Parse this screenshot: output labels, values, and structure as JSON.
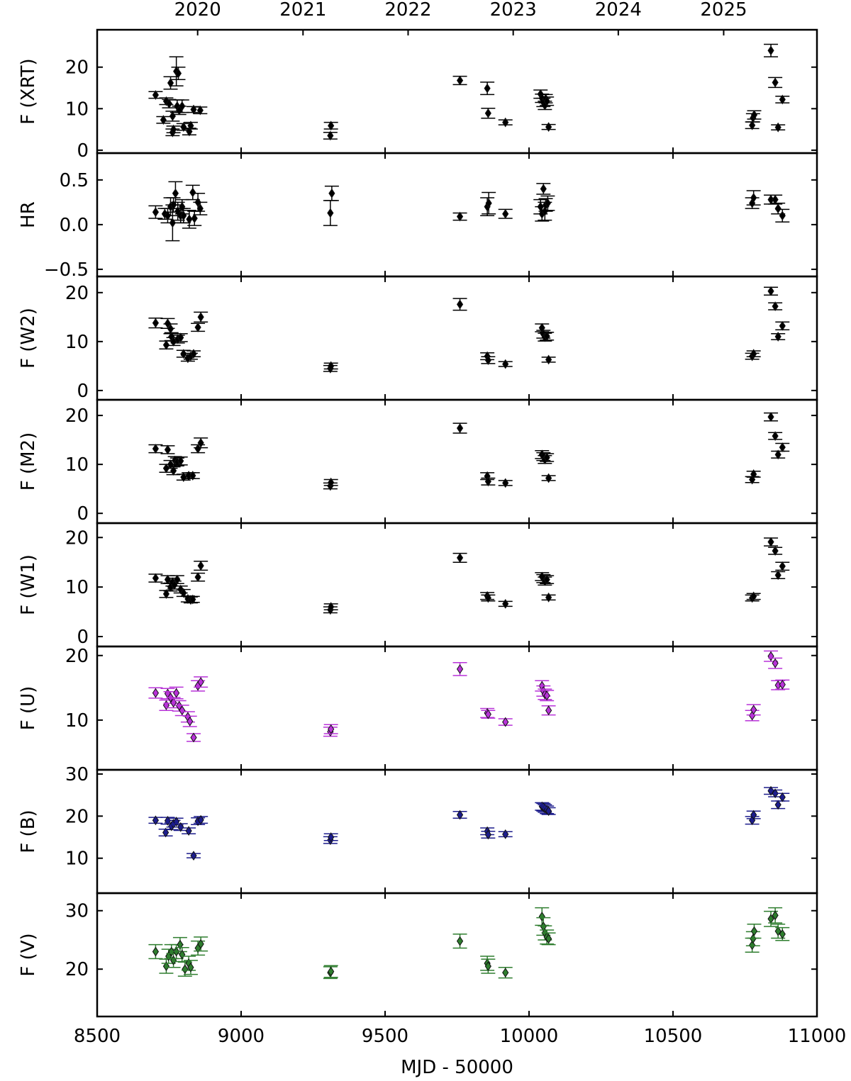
{
  "chart_data": [
    {
      "type": "scatter",
      "ylabel": "F (XRT)",
      "color": "#000000",
      "xlim": [
        8500,
        11000
      ],
      "ylim": [
        -0.7,
        29
      ],
      "yticks": [
        0,
        10,
        20
      ],
      "x2ticks": [
        {
          "value": 8849,
          "label": "2020"
        },
        {
          "value": 9215,
          "label": "2021"
        },
        {
          "value": 9580,
          "label": "2022"
        },
        {
          "value": 9945,
          "label": "2023"
        },
        {
          "value": 10310,
          "label": "2024"
        },
        {
          "value": 10676,
          "label": "2025"
        }
      ],
      "x": [
        8703,
        8730,
        8740,
        8755,
        8750,
        8762,
        8762,
        8765,
        8775,
        8782,
        8778,
        8785,
        8795,
        8800,
        8820,
        8825,
        8835,
        8858,
        9310,
        9312,
        9760,
        9855,
        9858,
        9918,
        10040,
        10045,
        10050,
        10055,
        10058,
        10062,
        10068,
        10775,
        10778,
        10782,
        10840,
        10855,
        10865,
        10880
      ],
      "values": [
        13.3,
        7.3,
        11.8,
        16.2,
        11.2,
        4.3,
        8.2,
        5,
        19,
        18.5,
        10.6,
        9.6,
        10.6,
        5.6,
        4.5,
        5.9,
        9.8,
        9.6,
        3.5,
        5.9,
        16.8,
        14.9,
        8.9,
        6.7,
        13.5,
        12.5,
        11.5,
        10.8,
        12.4,
        11.8,
        5.6,
        6,
        7.8,
        8.5,
        24,
        16.3,
        5.5,
        12.2
      ],
      "errors": [
        0.8,
        0.8,
        0.8,
        1.5,
        1,
        0.8,
        1.2,
        0.8,
        3.5,
        1.5,
        1.5,
        1,
        1.5,
        0.8,
        0.8,
        0.8,
        0.7,
        0.8,
        0.8,
        0.8,
        1,
        1.5,
        1.2,
        0.6,
        1,
        1,
        1,
        1,
        1,
        1,
        0.6,
        0.8,
        1,
        1,
        1.5,
        1.2,
        0.6,
        0.8
      ]
    },
    {
      "type": "scatter",
      "ylabel": "HR",
      "color": "#000000",
      "xlim": [
        8500,
        11000
      ],
      "ylim": [
        -0.58,
        0.8
      ],
      "yticks": [
        {
          "value": -0.5,
          "label": "−0.5"
        },
        {
          "value": 0,
          "label": "0.0"
        },
        {
          "value": 0.5,
          "label": "0.5"
        }
      ],
      "x": [
        8703,
        8735,
        8745,
        8755,
        8762,
        8765,
        8772,
        8780,
        8790,
        8795,
        8800,
        8820,
        8832,
        8838,
        8850,
        8858,
        9310,
        9315,
        9760,
        9855,
        9860,
        9918,
        10040,
        10045,
        10050,
        10055,
        10058,
        10065,
        10775,
        10780,
        10840,
        10855,
        10865,
        10880
      ],
      "values": [
        0.14,
        0.12,
        0.1,
        0.2,
        0.02,
        0.22,
        0.35,
        0.15,
        0.1,
        0.2,
        0.1,
        0.06,
        0.36,
        0.07,
        0.25,
        0.18,
        0.13,
        0.35,
        0.09,
        0.2,
        0.24,
        0.12,
        0.2,
        0.12,
        0.4,
        0.15,
        0.22,
        0.24,
        0.24,
        0.3,
        0.28,
        0.28,
        0.18,
        0.1
      ],
      "errors": [
        0.07,
        0.06,
        0.08,
        0.1,
        0.2,
        0.08,
        0.13,
        0.1,
        0.08,
        0.08,
        0.08,
        0.1,
        0.08,
        0.08,
        0.1,
        0.07,
        0.14,
        0.08,
        0.04,
        0.1,
        0.12,
        0.05,
        0.08,
        0.08,
        0.06,
        0.1,
        0.07,
        0.08,
        0.06,
        0.08,
        0.05,
        0.05,
        0.06,
        0.07
      ]
    },
    {
      "type": "scatter",
      "ylabel": "F (W2)",
      "color": "#000000",
      "xlim": [
        8500,
        11000
      ],
      "ylim": [
        -1.9,
        23.3
      ],
      "yticks": [
        0,
        10,
        20
      ],
      "x": [
        8703,
        8740,
        8745,
        8755,
        8758,
        8765,
        8780,
        8790,
        8800,
        8815,
        8825,
        8835,
        8850,
        8860,
        9310,
        9312,
        9760,
        9855,
        9858,
        9918,
        10045,
        10050,
        10055,
        10062,
        10068,
        10775,
        10780,
        10840,
        10855,
        10865,
        10880
      ],
      "values": [
        13.8,
        9.3,
        13.7,
        12.6,
        11,
        10,
        10.5,
        10.8,
        7.5,
        6.6,
        7,
        7.5,
        12.9,
        15,
        4.5,
        5,
        17.6,
        7,
        6.2,
        5.4,
        12.8,
        11.5,
        10.9,
        11.1,
        6.3,
        7,
        7.5,
        20.3,
        17.2,
        11,
        13.2
      ],
      "errors": [
        1,
        0.8,
        1,
        1,
        0.8,
        0.8,
        0.8,
        0.8,
        0.7,
        0.6,
        0.6,
        0.6,
        0.8,
        1,
        0.6,
        0.6,
        1.2,
        0.7,
        0.7,
        0.5,
        0.8,
        0.8,
        0.8,
        0.8,
        0.5,
        0.6,
        0.6,
        0.8,
        0.7,
        0.6,
        0.8
      ]
    },
    {
      "type": "scatter",
      "ylabel": "F (M2)",
      "color": "#000000",
      "xlim": [
        8500,
        11000
      ],
      "ylim": [
        -2,
        23.2
      ],
      "yticks": [
        0,
        10,
        20
      ],
      "x": [
        8703,
        8740,
        8745,
        8755,
        8765,
        8770,
        8778,
        8790,
        8800,
        8818,
        8832,
        8850,
        8860,
        9310,
        9312,
        9760,
        9855,
        9858,
        9918,
        10045,
        10050,
        10055,
        10062,
        10068,
        10775,
        10780,
        10840,
        10855,
        10865,
        10880
      ],
      "values": [
        13.2,
        9.2,
        13,
        10,
        8.7,
        10.8,
        10.5,
        10.7,
        7.4,
        7.7,
        7.7,
        13.2,
        14.4,
        5.6,
        6.3,
        17.4,
        7.6,
        6.5,
        6.2,
        12,
        11.6,
        11,
        11.4,
        7.2,
        6.9,
        8,
        19.7,
        15.8,
        12,
        13.5
      ],
      "errors": [
        0.8,
        0.8,
        0.8,
        0.8,
        0.8,
        0.8,
        0.8,
        0.8,
        0.6,
        0.6,
        0.6,
        0.8,
        1,
        0.6,
        0.6,
        1,
        0.7,
        0.7,
        0.5,
        0.8,
        0.8,
        0.8,
        0.8,
        0.5,
        0.6,
        0.6,
        0.8,
        0.7,
        0.7,
        0.8
      ]
    },
    {
      "type": "scatter",
      "ylabel": "F (W1)",
      "color": "#000000",
      "xlim": [
        8500,
        11000
      ],
      "ylim": [
        -2,
        22.9
      ],
      "yticks": [
        0,
        10,
        20
      ],
      "x": [
        8703,
        8740,
        8745,
        8755,
        8762,
        8768,
        8778,
        8790,
        8800,
        8815,
        8825,
        8832,
        8850,
        8860,
        9310,
        9312,
        9760,
        9855,
        9858,
        9918,
        10045,
        10050,
        10055,
        10062,
        10068,
        10775,
        10780,
        10840,
        10855,
        10865,
        10880
      ],
      "values": [
        11.8,
        8.6,
        11.5,
        10,
        11,
        10.4,
        11.5,
        9.5,
        8.8,
        7.6,
        7.4,
        7.5,
        12,
        14.3,
        5.4,
        6,
        15.9,
        8.2,
        7.8,
        6.6,
        12.1,
        11.7,
        11.2,
        11.5,
        7.9,
        7.8,
        8.1,
        19.1,
        17.3,
        12.4,
        14.2
      ],
      "errors": [
        0.8,
        0.7,
        0.8,
        0.8,
        0.8,
        0.8,
        0.8,
        0.7,
        0.7,
        0.6,
        0.6,
        0.6,
        0.8,
        0.9,
        0.6,
        0.6,
        0.9,
        0.7,
        0.6,
        0.5,
        0.8,
        0.8,
        0.8,
        0.8,
        0.5,
        0.6,
        0.6,
        0.8,
        0.7,
        0.7,
        0.8
      ]
    },
    {
      "type": "scatter",
      "ylabel": "F (U)",
      "color": "#b832d8",
      "xlim": [
        8500,
        11000
      ],
      "ylim": [
        2.3,
        21.4
      ],
      "yticks": [
        10,
        20
      ],
      "x": [
        8703,
        8740,
        8745,
        8755,
        8765,
        8775,
        8785,
        8795,
        8815,
        8822,
        8835,
        8850,
        8860,
        9310,
        9312,
        9760,
        9855,
        9858,
        9918,
        10045,
        10050,
        10055,
        10062,
        10068,
        10775,
        10780,
        10840,
        10855,
        10865,
        10880
      ],
      "values": [
        14.2,
        12.3,
        14.1,
        13.5,
        12.7,
        14.2,
        12.2,
        11.5,
        10.5,
        9.8,
        7.3,
        15.3,
        15.9,
        8.2,
        8.6,
        17.9,
        11.1,
        10.9,
        9.7,
        15.3,
        14.5,
        14,
        13.8,
        11.5,
        10.7,
        11.6,
        19.9,
        18.8,
        15.4,
        15.5
      ],
      "errors": [
        0.8,
        0.8,
        0.8,
        0.9,
        0.8,
        0.9,
        0.8,
        0.8,
        0.8,
        0.8,
        0.6,
        0.8,
        0.8,
        0.7,
        0.7,
        1,
        0.7,
        0.6,
        0.5,
        0.8,
        0.8,
        0.8,
        0.8,
        0.7,
        0.8,
        0.8,
        0.8,
        0.8,
        0.7,
        0.7
      ]
    },
    {
      "type": "scatter",
      "ylabel": "F (B)",
      "color": "#1c1c8c",
      "xlim": [
        8500,
        11000
      ],
      "ylim": [
        1.7,
        31
      ],
      "yticks": [
        10,
        20,
        30
      ],
      "x": [
        8703,
        8738,
        8745,
        8758,
        8765,
        8775,
        8790,
        8818,
        8835,
        8850,
        8860,
        9310,
        9312,
        9760,
        9855,
        9858,
        9918,
        10045,
        10050,
        10055,
        10062,
        10068,
        10775,
        10780,
        10840,
        10855,
        10865,
        10880
      ],
      "values": [
        19,
        16.1,
        18.9,
        17.6,
        18.2,
        18.7,
        17.4,
        16.5,
        10.6,
        18.8,
        19.1,
        14.3,
        15,
        20.3,
        16.4,
        15.6,
        15.7,
        22.3,
        22.1,
        21.8,
        21.5,
        21.2,
        19,
        20.3,
        26,
        25.4,
        22.7,
        24.5
      ],
      "errors": [
        0.7,
        0.8,
        0.8,
        0.8,
        0.8,
        0.8,
        0.8,
        0.7,
        0.5,
        0.8,
        0.8,
        0.8,
        0.8,
        0.8,
        0.8,
        0.8,
        0.6,
        0.9,
        0.9,
        0.9,
        0.9,
        0.8,
        0.9,
        0.9,
        0.8,
        0.8,
        0.9,
        0.9
      ]
    },
    {
      "type": "scatter",
      "ylabel": "F (V)",
      "color": "#2e7d2e",
      "xlim": [
        8500,
        11000
      ],
      "ylim": [
        11.9,
        33
      ],
      "yticks": [
        20,
        30
      ],
      "xticks": [
        8500,
        9000,
        9500,
        10000,
        10500,
        11000
      ],
      "xlabel": "MJD - 50000",
      "x": [
        8703,
        8740,
        8748,
        8758,
        8765,
        8775,
        8788,
        8795,
        8805,
        8818,
        8825,
        8850,
        8860,
        9310,
        9312,
        9760,
        9855,
        9858,
        9918,
        10045,
        10050,
        10055,
        10062,
        10068,
        10775,
        10778,
        10782,
        10840,
        10855,
        10865,
        10880
      ],
      "values": [
        23,
        20.5,
        22.2,
        23,
        21.5,
        23,
        24.2,
        22.5,
        20,
        21,
        20.3,
        23.6,
        24.3,
        19.4,
        19.6,
        24.8,
        21,
        20.5,
        19.4,
        29,
        27.3,
        26.2,
        25.5,
        25.2,
        24.1,
        25.2,
        26.5,
        28.6,
        29.2,
        26.5,
        26
      ],
      "errors": [
        1.2,
        1.2,
        1.2,
        1.2,
        1.2,
        1.2,
        1.2,
        1.2,
        1.2,
        1.2,
        1.2,
        1.2,
        1.2,
        1,
        1,
        1.2,
        1.2,
        1.2,
        0.9,
        1.5,
        1.5,
        1.2,
        1.2,
        1,
        1.2,
        1.2,
        1.2,
        1.3,
        1.3,
        1.2,
        1.1
      ]
    }
  ]
}
